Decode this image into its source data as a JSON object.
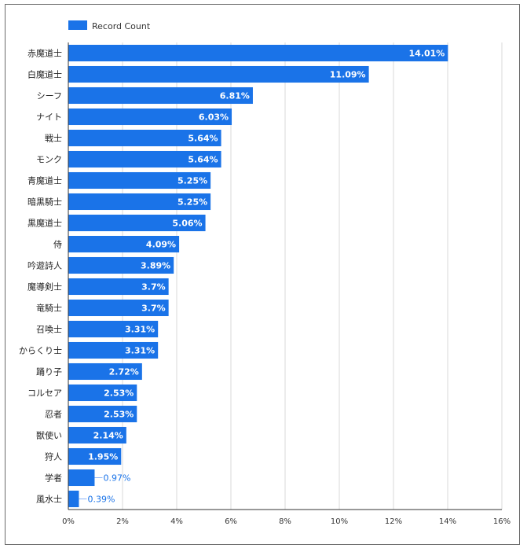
{
  "chart_data": {
    "type": "bar",
    "orientation": "horizontal",
    "legend": {
      "label": "Record Count",
      "position": "top-left"
    },
    "categories": [
      "赤魔道士",
      "白魔道士",
      "シーフ",
      "ナイト",
      "戦士",
      "モンク",
      "青魔道士",
      "暗黒騎士",
      "黒魔道士",
      "侍",
      "吟遊詩人",
      "魔導剣士",
      "竜騎士",
      "召喚士",
      "からくり士",
      "踊り子",
      "コルセア",
      "忍者",
      "獣使い",
      "狩人",
      "学者",
      "風水士"
    ],
    "values": [
      14.01,
      11.09,
      6.81,
      6.03,
      5.64,
      5.64,
      5.25,
      5.25,
      5.06,
      4.09,
      3.89,
      3.7,
      3.7,
      3.31,
      3.31,
      2.72,
      2.53,
      2.53,
      2.14,
      1.95,
      0.97,
      0.39
    ],
    "value_labels": [
      "14.01%",
      "11.09%",
      "6.81%",
      "6.03%",
      "5.64%",
      "5.64%",
      "5.25%",
      "5.25%",
      "5.06%",
      "4.09%",
      "3.89%",
      "3.7%",
      "3.7%",
      "3.31%",
      "3.31%",
      "2.72%",
      "2.53%",
      "2.53%",
      "2.14%",
      "1.95%",
      "0.97%",
      "0.39%"
    ],
    "xlim": [
      0,
      16
    ],
    "xticks": [
      "0%",
      "2%",
      "4%",
      "6%",
      "8%",
      "10%",
      "12%",
      "14%",
      "16%"
    ],
    "grid": true,
    "colors": {
      "bar": "#1a73e8",
      "grid": "#d9d9d9",
      "axis": "#333333"
    }
  }
}
